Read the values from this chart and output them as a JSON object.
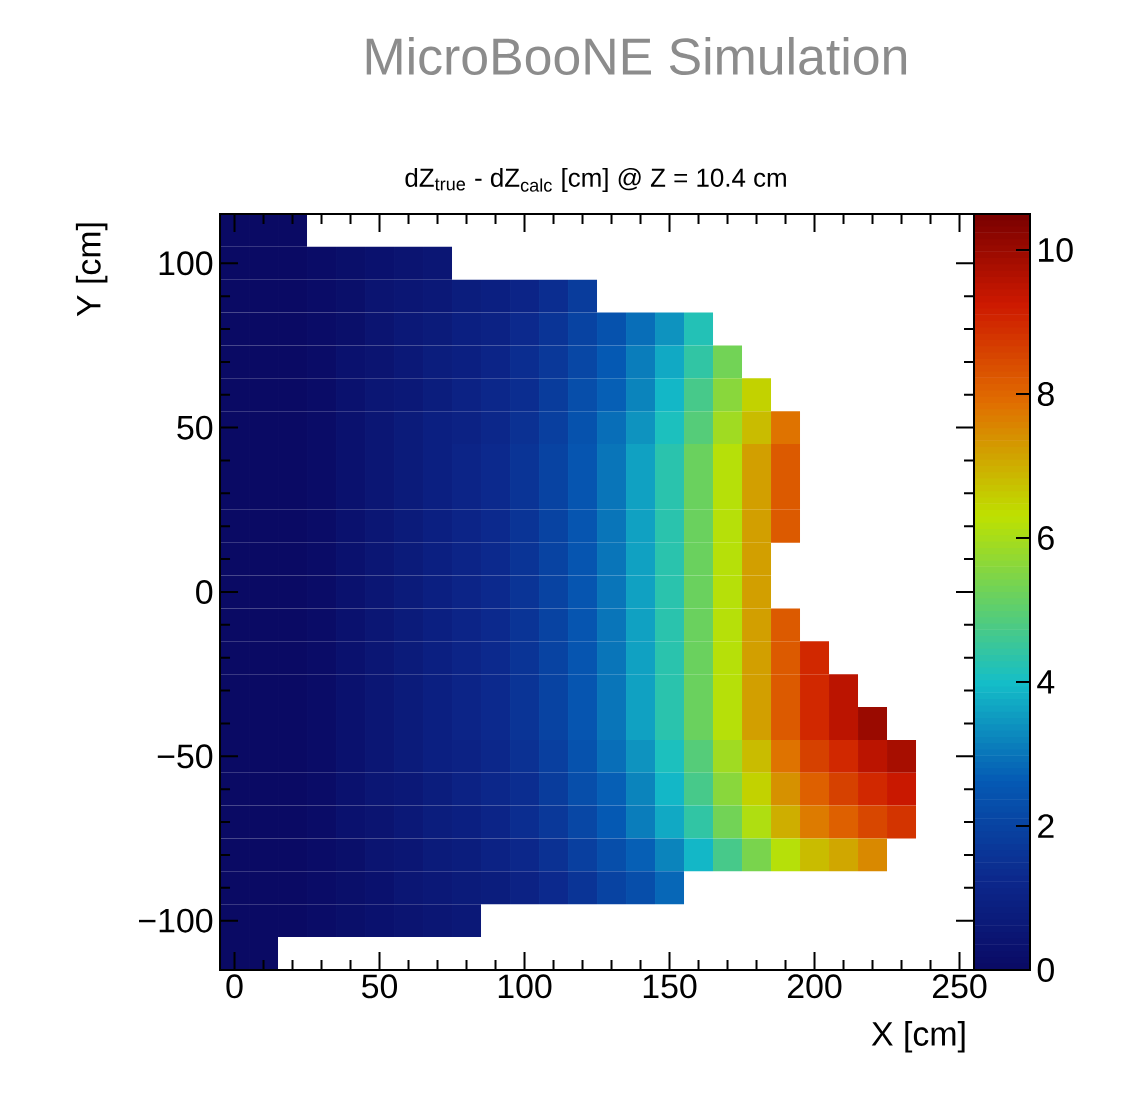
{
  "chart_data": {
    "type": "heatmap",
    "title": "MicroBooNE Simulation",
    "subtitle": "dZ$_{true}$ - dZ$_{calc}$ [cm] @ Z = 10.4 cm",
    "xlabel": "X [cm]",
    "ylabel": "Y [cm]",
    "categories": [
      "0",
      null,
      null,
      null,
      null,
      "50",
      null,
      null,
      null,
      null,
      "100",
      null,
      null,
      null,
      null,
      "150",
      null,
      null,
      null,
      null,
      "200",
      null,
      null,
      null,
      null,
      "250"
    ],
    "y_categories": [
      null,
      "100",
      null,
      null,
      null,
      null,
      "50",
      null,
      null,
      null,
      null,
      "0",
      null,
      null,
      null,
      null,
      "−50",
      null,
      null,
      null,
      null,
      "−100",
      null
    ],
    "clim": [
      0,
      10.5
    ],
    "cticks": [
      {
        "value": 0,
        "label": "0"
      },
      {
        "value": 2,
        "label": "2"
      },
      {
        "value": 4,
        "label": "4"
      },
      {
        "value": 6,
        "label": "6"
      },
      {
        "value": 8,
        "label": "8"
      },
      {
        "value": 10,
        "label": "10"
      }
    ],
    "cells": [
      [
        0,
        0,
        0,
        null,
        null,
        null,
        null,
        null,
        null,
        null,
        null,
        null,
        null,
        null,
        null,
        null,
        null,
        null,
        null,
        null,
        null,
        null,
        null,
        null,
        null,
        null
      ],
      [
        0,
        0,
        0,
        0.1,
        0.2,
        0.3,
        0.4,
        0.5,
        null,
        null,
        null,
        null,
        null,
        null,
        null,
        null,
        null,
        null,
        null,
        null,
        null,
        null,
        null,
        null,
        null,
        null
      ],
      [
        0,
        0,
        0,
        0.1,
        0.2,
        0.4,
        0.5,
        0.6,
        0.8,
        0.9,
        1.1,
        1.4,
        1.8,
        null,
        null,
        null,
        null,
        null,
        null,
        null,
        null,
        null,
        null,
        null,
        null,
        null
      ],
      [
        0,
        0,
        0,
        0.1,
        0.2,
        0.4,
        0.6,
        0.7,
        0.9,
        1.0,
        1.3,
        1.6,
        2.0,
        2.4,
        2.9,
        3.4,
        4.2,
        null,
        null,
        null,
        null,
        null,
        null,
        null,
        null,
        null
      ],
      [
        0,
        0,
        0,
        0.1,
        0.3,
        0.4,
        0.6,
        0.8,
        0.9,
        1.1,
        1.4,
        1.7,
        2.1,
        2.6,
        3.1,
        3.7,
        4.4,
        5.3,
        null,
        null,
        null,
        null,
        null,
        null,
        null,
        null
      ],
      [
        0,
        0,
        0,
        0.1,
        0.3,
        0.5,
        0.6,
        0.8,
        1.0,
        1.2,
        1.4,
        1.8,
        2.3,
        2.7,
        3.2,
        3.9,
        4.7,
        5.6,
        6.5,
        null,
        null,
        null,
        null,
        null,
        null,
        null
      ],
      [
        0,
        0,
        0,
        0.1,
        0.3,
        0.5,
        0.7,
        0.9,
        1.0,
        1.2,
        1.5,
        1.9,
        2.4,
        2.9,
        3.4,
        4.1,
        4.9,
        5.9,
        6.8,
        7.8,
        null,
        null,
        null,
        null,
        null,
        null
      ],
      [
        0,
        0,
        0,
        0.1,
        0.3,
        0.5,
        0.7,
        0.9,
        1.1,
        1.3,
        1.6,
        2.0,
        2.5,
        3.0,
        3.6,
        4.3,
        5.2,
        6.2,
        7.2,
        8.2,
        null,
        null,
        null,
        null,
        null,
        null
      ],
      [
        0,
        0,
        0,
        0.1,
        0.3,
        0.5,
        0.7,
        0.9,
        1.1,
        1.3,
        1.6,
        2.0,
        2.5,
        3.0,
        3.6,
        4.3,
        5.2,
        6.2,
        7.2,
        8.2,
        null,
        null,
        null,
        null,
        null,
        null
      ],
      [
        0,
        0,
        0,
        0.1,
        0.3,
        0.5,
        0.7,
        0.9,
        1.1,
        1.3,
        1.6,
        2.0,
        2.5,
        3.0,
        3.6,
        4.3,
        5.2,
        6.2,
        7.2,
        8.2,
        null,
        null,
        null,
        null,
        null,
        null
      ],
      [
        0,
        0,
        0,
        0.1,
        0.3,
        0.5,
        0.7,
        0.9,
        1.1,
        1.3,
        1.6,
        2.0,
        2.5,
        3.0,
        3.6,
        4.3,
        5.2,
        6.2,
        7.2,
        null,
        null,
        null,
        null,
        null,
        null,
        null
      ],
      [
        0,
        0,
        0,
        0.1,
        0.3,
        0.5,
        0.7,
        0.9,
        1.1,
        1.3,
        1.6,
        2.0,
        2.5,
        3.0,
        3.6,
        4.3,
        5.2,
        6.2,
        7.2,
        null,
        null,
        null,
        null,
        null,
        null,
        null
      ],
      [
        0,
        0,
        0,
        0.1,
        0.3,
        0.5,
        0.7,
        0.9,
        1.1,
        1.3,
        1.6,
        2.0,
        2.5,
        3.0,
        3.6,
        4.3,
        5.2,
        6.2,
        7.2,
        8.2,
        null,
        null,
        null,
        null,
        null,
        null
      ],
      [
        0,
        0,
        0,
        0.1,
        0.3,
        0.5,
        0.7,
        0.9,
        1.1,
        1.3,
        1.6,
        2.0,
        2.5,
        3.0,
        3.6,
        4.3,
        5.2,
        6.2,
        7.2,
        8.2,
        9.0,
        null,
        null,
        null,
        null,
        null
      ],
      [
        0,
        0,
        0,
        0.1,
        0.3,
        0.5,
        0.7,
        0.9,
        1.1,
        1.3,
        1.6,
        2.0,
        2.5,
        3.0,
        3.6,
        4.3,
        5.2,
        6.2,
        7.2,
        8.2,
        9.0,
        9.5,
        null,
        null,
        null,
        null
      ],
      [
        0,
        0,
        0,
        0.1,
        0.3,
        0.5,
        0.7,
        0.9,
        1.1,
        1.3,
        1.6,
        2.0,
        2.5,
        3.0,
        3.6,
        4.3,
        5.2,
        6.2,
        7.2,
        8.2,
        9.0,
        9.5,
        10.0,
        null,
        null,
        null
      ],
      [
        0,
        0,
        0,
        0.1,
        0.3,
        0.5,
        0.7,
        0.9,
        1.0,
        1.2,
        1.5,
        1.9,
        2.4,
        2.9,
        3.4,
        4.1,
        4.9,
        5.9,
        6.8,
        7.8,
        8.6,
        9.0,
        9.5,
        9.8,
        null,
        null
      ],
      [
        0,
        0,
        0,
        0.1,
        0.3,
        0.5,
        0.6,
        0.8,
        1.0,
        1.2,
        1.4,
        1.8,
        2.3,
        2.7,
        3.2,
        3.9,
        4.7,
        5.6,
        6.5,
        7.4,
        8.1,
        8.6,
        9.0,
        9.3,
        null,
        null
      ],
      [
        0,
        0,
        0,
        0.1,
        0.3,
        0.4,
        0.6,
        0.8,
        0.9,
        1.1,
        1.4,
        1.7,
        2.1,
        2.6,
        3.1,
        3.7,
        4.4,
        5.3,
        6.1,
        7.0,
        7.7,
        8.1,
        8.5,
        8.8,
        null,
        null
      ],
      [
        0,
        0,
        0,
        0.1,
        0.2,
        0.4,
        0.5,
        0.7,
        0.8,
        1.0,
        1.2,
        1.5,
        1.9,
        2.3,
        2.7,
        3.2,
        3.9,
        4.7,
        5.4,
        6.2,
        6.8,
        7.1,
        7.5,
        null,
        null,
        null
      ],
      [
        0,
        0,
        0,
        0.1,
        0.2,
        0.3,
        0.5,
        0.6,
        0.7,
        0.8,
        1.0,
        1.3,
        1.6,
        2.0,
        2.3,
        2.8,
        null,
        null,
        null,
        null,
        null,
        null,
        null,
        null,
        null,
        null
      ],
      [
        0,
        0,
        0,
        0.1,
        0.2,
        0.3,
        0.4,
        0.5,
        0.6,
        null,
        null,
        null,
        null,
        null,
        null,
        null,
        null,
        null,
        null,
        null,
        null,
        null,
        null,
        null,
        null,
        null
      ],
      [
        0,
        0,
        null,
        null,
        null,
        null,
        null,
        null,
        null,
        null,
        null,
        null,
        null,
        null,
        null,
        null,
        null,
        null,
        null,
        null,
        null,
        null,
        null,
        null,
        null,
        null
      ]
    ]
  }
}
